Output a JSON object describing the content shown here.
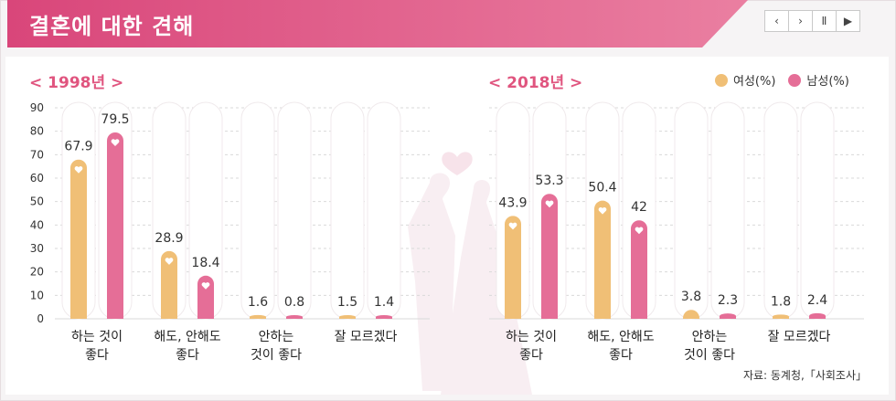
{
  "header": {
    "title": "결혼에 대한 견해"
  },
  "controls": {
    "prev": "‹",
    "next": "›",
    "pause": "Ⅱ",
    "play": "▶"
  },
  "legend": [
    {
      "label": "여성(%)",
      "color": "#f0bf76"
    },
    {
      "label": "남성(%)",
      "color": "#e56e97"
    }
  ],
  "source": "자료: 동계청,「사회조사」",
  "chart_data": [
    {
      "type": "bar",
      "title": "< 1998년 >",
      "categories": [
        [
          "하는 것이",
          "좋다"
        ],
        [
          "해도, 안해도",
          "좋다"
        ],
        [
          "안하는",
          "것이 좋다"
        ],
        [
          "잘 모르겠다"
        ]
      ],
      "series": [
        {
          "name": "여성(%)",
          "values": [
            67.9,
            28.9,
            1.6,
            1.5
          ]
        },
        {
          "name": "남성(%)",
          "values": [
            79.5,
            18.4,
            0.8,
            1.4
          ]
        }
      ],
      "yticks": [
        0,
        10,
        20,
        30,
        40,
        50,
        60,
        70,
        80,
        90
      ],
      "ylim": [
        0,
        90
      ]
    },
    {
      "type": "bar",
      "title": "< 2018년 >",
      "categories": [
        [
          "하는 것이",
          "좋다"
        ],
        [
          "해도, 안해도",
          "좋다"
        ],
        [
          "안하는",
          "것이 좋다"
        ],
        [
          "잘 모르겠다"
        ]
      ],
      "series": [
        {
          "name": "여성(%)",
          "values": [
            43.9,
            50.4,
            3.8,
            1.8
          ]
        },
        {
          "name": "남성(%)",
          "values": [
            53.3,
            42,
            2.3,
            2.4
          ]
        }
      ],
      "ylim": [
        0,
        90
      ]
    }
  ]
}
